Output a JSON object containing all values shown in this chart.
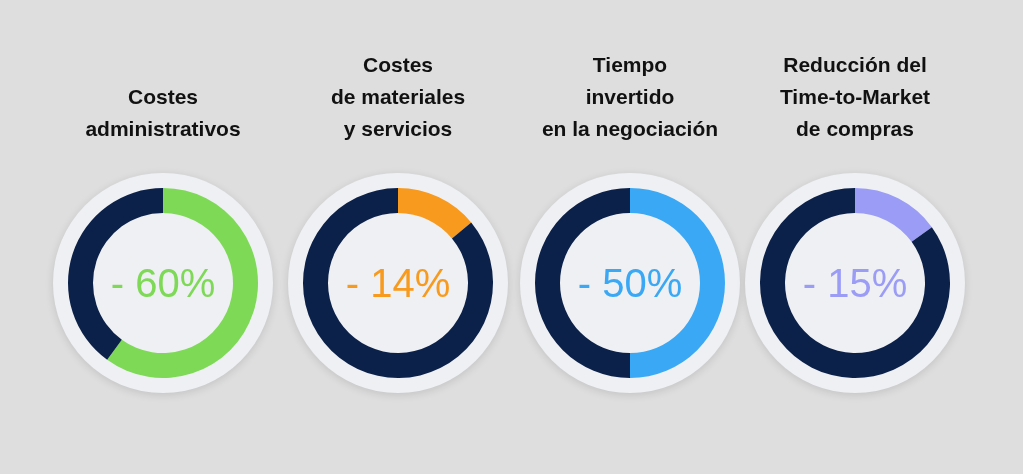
{
  "chart_data": [
    {
      "type": "donut",
      "title": "Costes\nadministrativos",
      "categories": [
        null,
        null
      ],
      "values": [
        60,
        40
      ],
      "colors": [
        "#7ed957",
        "#0c2149"
      ],
      "annotations": [
        "- 60%"
      ]
    },
    {
      "type": "donut",
      "title": "Costes\nde materiales\ny servicios",
      "categories": [
        null,
        null
      ],
      "values": [
        14,
        86
      ],
      "colors": [
        "#f79a1e",
        "#0c2149"
      ],
      "annotations": [
        "- 14%"
      ]
    },
    {
      "type": "donut",
      "title": "Tiempo\ninvertido\nen la negociación",
      "categories": [
        null,
        null
      ],
      "values": [
        50,
        50
      ],
      "colors": [
        "#3aa8f5",
        "#0c2149"
      ],
      "annotations": [
        "- 50%"
      ]
    },
    {
      "type": "donut",
      "title": "Reducción del\nTime-to-Market\nde compras",
      "categories": [
        null,
        null
      ],
      "values": [
        15,
        85
      ],
      "colors": [
        "#9b9cf5",
        "#0c2149"
      ],
      "annotations": [
        "- 15%"
      ]
    }
  ]
}
